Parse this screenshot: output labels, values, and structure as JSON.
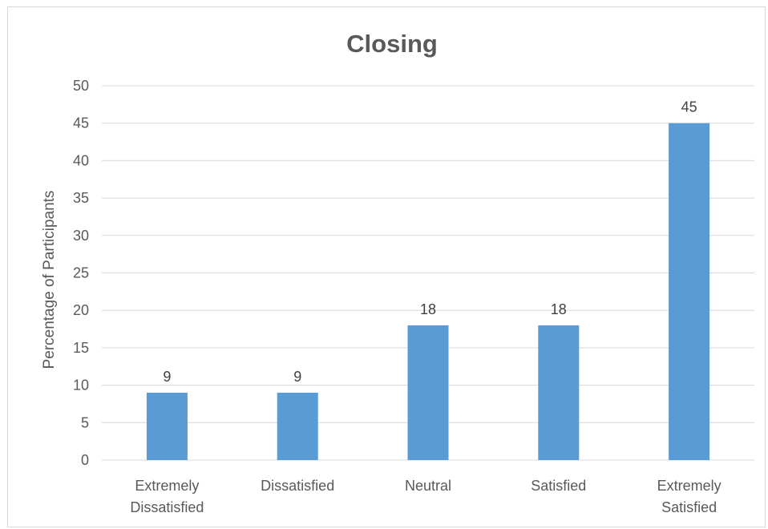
{
  "chart_data": {
    "type": "bar",
    "title": "Closing",
    "xlabel": "",
    "ylabel": "Percentage of Participants",
    "categories": [
      [
        "Extremely",
        "Dissatisfied"
      ],
      [
        "Dissatisfied"
      ],
      [
        "Neutral"
      ],
      [
        "Satisfied"
      ],
      [
        "Extremely",
        "Satisfied"
      ]
    ],
    "values": [
      9,
      9,
      18,
      18,
      45
    ],
    "data_labels": [
      "9",
      "9",
      "18",
      "18",
      "45"
    ],
    "ylim": [
      0,
      50
    ],
    "yticks": [
      0,
      5,
      10,
      15,
      20,
      25,
      30,
      35,
      40,
      45,
      50
    ],
    "ytick_labels": [
      "0",
      "5",
      "10",
      "15",
      "20",
      "25",
      "30",
      "35",
      "40",
      "45",
      "50"
    ],
    "grid": true,
    "legend": "none",
    "colors": {
      "bar": "#5b9bd5",
      "gridline": "#d9d9d9",
      "text": "#595959",
      "data_label": "#404040"
    }
  }
}
